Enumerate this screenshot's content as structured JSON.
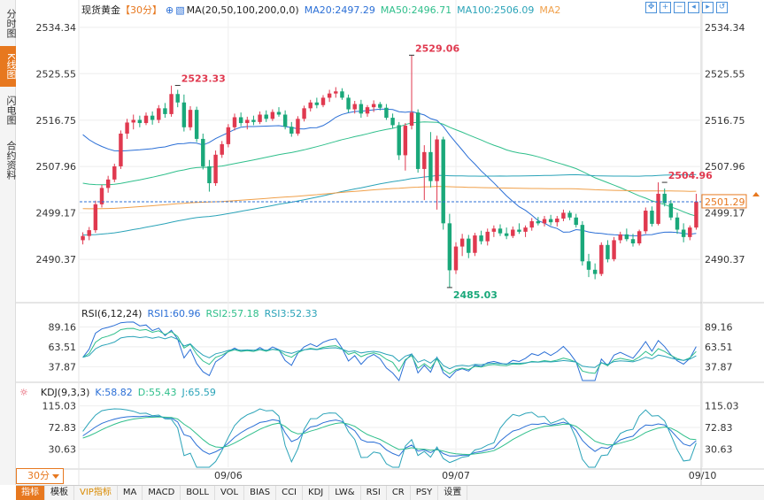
{
  "sidebar": {
    "tabs": [
      {
        "label": "分时图",
        "active": false
      },
      {
        "label": "K线图",
        "active": true
      },
      {
        "label": "闪电图",
        "active": false
      },
      {
        "label": "合约资料",
        "active": false
      }
    ]
  },
  "main_legend": {
    "name": "现货黄金",
    "period": "【30分】",
    "ma_label": "MA(20,50,100,200,0,0)",
    "ma20": "MA20:2497.29",
    "ma50": "MA50:2496.71",
    "ma100": "MA100:2506.09",
    "ma200": "MA2"
  },
  "rsi_legend": {
    "name": "RSI(6,12,24)",
    "r1": "RSI1:60.96",
    "r2": "RSI2:57.18",
    "r3": "RSI3:52.33"
  },
  "kdj_legend": {
    "name": "KDJ(9,3,3)",
    "k": "K:58.82",
    "d": "D:55.43",
    "j": "J:65.59"
  },
  "tools": [
    "zoom-fit-icon",
    "zoom-in-icon",
    "zoom-out-icon",
    "move-left-icon",
    "move-right-icon",
    "reset-icon"
  ],
  "period_selector": "30分",
  "bottom_bar": [
    "指标",
    "模板",
    "VIP指标",
    "MA",
    "MACD",
    "BOLL",
    "VOL",
    "BIAS",
    "CCI",
    "KDJ",
    "LW&",
    "RSI",
    "CR",
    "PSY",
    "设置"
  ],
  "colors": {
    "up": "#e0394f",
    "down": "#1aa87a",
    "ma20": "#2b6fd6",
    "ma50": "#2fbf8b",
    "ma100": "#2aa3b8",
    "ma200": "#f0a04a",
    "accent": "#e7781f"
  },
  "chart_data": [
    {
      "type": "candlestick",
      "title": "现货黄金",
      "y_ticks": [
        2534.34,
        2525.55,
        2516.75,
        2507.96,
        2499.17,
        2490.37
      ],
      "ylim": [
        2482.5,
        2536.5
      ],
      "x_ticks": [
        {
          "label": "09/06",
          "index": 23
        },
        {
          "label": "09/07",
          "index": 59
        },
        {
          "label": "09/10",
          "index": 98
        }
      ],
      "annotations": [
        {
          "label": "2523.33",
          "index": 15,
          "value": 2523.33,
          "kind": "high"
        },
        {
          "label": "2529.06",
          "index": 52,
          "value": 2529.06,
          "kind": "high"
        },
        {
          "label": "2485.03",
          "index": 58,
          "value": 2485.03,
          "kind": "low"
        },
        {
          "label": "2504.96",
          "index": 92,
          "value": 2504.96,
          "kind": "high"
        }
      ],
      "current_price": 2501.29,
      "ohlc": [
        [
          2494.0,
          2495.5,
          2493.2,
          2494.8
        ],
        [
          2494.8,
          2496.5,
          2494.0,
          2495.9
        ],
        [
          2495.9,
          2501.5,
          2495.4,
          2500.8
        ],
        [
          2500.8,
          2504.5,
          2500.2,
          2503.9
        ],
        [
          2503.9,
          2506.2,
          2503.0,
          2505.5
        ],
        [
          2505.5,
          2508.5,
          2505.0,
          2508.0
        ],
        [
          2508.0,
          2514.8,
          2507.5,
          2514.2
        ],
        [
          2514.2,
          2517.0,
          2513.2,
          2516.3
        ],
        [
          2516.3,
          2517.8,
          2515.0,
          2516.8
        ],
        [
          2516.8,
          2517.6,
          2515.4,
          2516.2
        ],
        [
          2516.2,
          2518.2,
          2515.8,
          2517.6
        ],
        [
          2517.6,
          2518.4,
          2515.9,
          2516.8
        ],
        [
          2516.8,
          2519.6,
          2516.2,
          2519.0
        ],
        [
          2519.0,
          2520.0,
          2517.2,
          2517.9
        ],
        [
          2517.9,
          2523.3,
          2517.4,
          2521.7
        ],
        [
          2521.7,
          2522.5,
          2519.2,
          2520.1
        ],
        [
          2520.1,
          2521.6,
          2514.6,
          2515.4
        ],
        [
          2515.4,
          2519.4,
          2514.8,
          2518.7
        ],
        [
          2518.7,
          2519.3,
          2512.6,
          2513.2
        ],
        [
          2513.2,
          2514.2,
          2507.4,
          2508.0
        ],
        [
          2508.0,
          2509.2,
          2503.2,
          2504.8
        ],
        [
          2504.8,
          2511.0,
          2504.3,
          2510.2
        ],
        [
          2510.2,
          2512.8,
          2509.6,
          2512.2
        ],
        [
          2512.2,
          2516.0,
          2511.6,
          2515.4
        ],
        [
          2515.4,
          2518.0,
          2514.8,
          2517.3
        ],
        [
          2517.3,
          2518.2,
          2515.6,
          2516.2
        ],
        [
          2516.2,
          2517.4,
          2515.0,
          2516.8
        ],
        [
          2516.8,
          2517.6,
          2515.8,
          2516.4
        ],
        [
          2516.4,
          2518.4,
          2516.0,
          2517.8
        ],
        [
          2517.8,
          2518.6,
          2516.4,
          2517.0
        ],
        [
          2517.0,
          2518.8,
          2516.6,
          2518.3
        ],
        [
          2518.3,
          2519.2,
          2517.4,
          2517.8
        ],
        [
          2517.8,
          2518.6,
          2515.0,
          2515.5
        ],
        [
          2515.5,
          2516.4,
          2513.6,
          2514.2
        ],
        [
          2514.2,
          2517.5,
          2513.8,
          2517.0
        ],
        [
          2517.0,
          2519.5,
          2516.5,
          2519.0
        ],
        [
          2519.0,
          2520.6,
          2518.4,
          2520.1
        ],
        [
          2520.1,
          2521.0,
          2519.0,
          2519.6
        ],
        [
          2519.6,
          2521.5,
          2519.2,
          2521.0
        ],
        [
          2521.0,
          2522.5,
          2520.2,
          2521.8
        ],
        [
          2521.8,
          2523.0,
          2521.0,
          2522.2
        ],
        [
          2522.2,
          2522.8,
          2520.6,
          2521.0
        ],
        [
          2521.0,
          2521.6,
          2518.2,
          2518.8
        ],
        [
          2518.8,
          2520.4,
          2518.0,
          2519.8
        ],
        [
          2519.8,
          2520.6,
          2517.2,
          2518.0
        ],
        [
          2518.0,
          2519.6,
          2517.4,
          2519.2
        ],
        [
          2519.2,
          2520.5,
          2518.3,
          2519.8
        ],
        [
          2519.8,
          2520.2,
          2518.6,
          2519.1
        ],
        [
          2519.1,
          2519.8,
          2516.8,
          2517.2
        ],
        [
          2517.2,
          2518.0,
          2515.2,
          2515.8
        ],
        [
          2515.8,
          2516.4,
          2509.2,
          2510.1
        ],
        [
          2510.1,
          2516.2,
          2507.2,
          2515.7
        ],
        [
          2515.7,
          2529.06,
          2515.0,
          2518.2
        ],
        [
          2518.2,
          2518.8,
          2506.8,
          2507.5
        ],
        [
          2507.5,
          2512.0,
          2501.6,
          2510.7
        ],
        [
          2510.7,
          2514.5,
          2504.0,
          2505.2
        ],
        [
          2505.2,
          2513.8,
          2499.8,
          2513.1
        ],
        [
          2513.1,
          2513.6,
          2496.0,
          2497.2
        ],
        [
          2497.2,
          2499.0,
          2485.03,
          2488.3
        ],
        [
          2488.3,
          2493.6,
          2487.6,
          2492.8
        ],
        [
          2492.8,
          2495.2,
          2491.0,
          2494.3
        ],
        [
          2494.3,
          2495.0,
          2490.6,
          2491.6
        ],
        [
          2491.6,
          2495.4,
          2491.0,
          2494.9
        ],
        [
          2494.9,
          2495.8,
          2493.2,
          2493.8
        ],
        [
          2493.8,
          2496.2,
          2493.0,
          2495.6
        ],
        [
          2495.6,
          2496.8,
          2494.6,
          2496.2
        ],
        [
          2496.2,
          2497.0,
          2494.8,
          2495.3
        ],
        [
          2495.3,
          2496.4,
          2494.2,
          2494.8
        ],
        [
          2494.8,
          2496.6,
          2494.4,
          2496.0
        ],
        [
          2496.0,
          2497.2,
          2495.2,
          2495.6
        ],
        [
          2495.6,
          2496.8,
          2494.6,
          2496.4
        ],
        [
          2496.4,
          2498.2,
          2495.8,
          2497.6
        ],
        [
          2497.6,
          2498.4,
          2496.8,
          2497.2
        ],
        [
          2497.2,
          2498.6,
          2496.6,
          2498.0
        ],
        [
          2498.0,
          2498.8,
          2496.8,
          2497.4
        ],
        [
          2497.4,
          2498.6,
          2496.6,
          2498.1
        ],
        [
          2498.1,
          2499.8,
          2497.6,
          2499.2
        ],
        [
          2499.2,
          2499.6,
          2497.8,
          2498.3
        ],
        [
          2498.3,
          2499.0,
          2496.4,
          2496.9
        ],
        [
          2496.9,
          2497.6,
          2489.2,
          2490.0
        ],
        [
          2490.0,
          2491.4,
          2487.0,
          2488.4
        ],
        [
          2488.4,
          2489.6,
          2486.6,
          2487.6
        ],
        [
          2487.6,
          2493.6,
          2487.2,
          2493.1
        ],
        [
          2493.1,
          2494.0,
          2489.8,
          2490.4
        ],
        [
          2490.4,
          2494.6,
          2490.0,
          2494.0
        ],
        [
          2494.0,
          2495.6,
          2493.4,
          2495.1
        ],
        [
          2495.1,
          2496.2,
          2493.8,
          2494.2
        ],
        [
          2494.2,
          2495.2,
          2492.8,
          2493.4
        ],
        [
          2493.4,
          2496.0,
          2493.0,
          2495.7
        ],
        [
          2495.7,
          2500.2,
          2495.2,
          2499.6
        ],
        [
          2499.6,
          2500.4,
          2496.6,
          2497.1
        ],
        [
          2497.1,
          2504.96,
          2496.8,
          2502.8
        ],
        [
          2502.8,
          2503.8,
          2500.4,
          2501.0
        ],
        [
          2501.0,
          2501.6,
          2497.8,
          2498.3
        ],
        [
          2498.3,
          2499.2,
          2495.2,
          2496.0
        ],
        [
          2496.0,
          2497.2,
          2493.6,
          2494.6
        ],
        [
          2494.6,
          2496.8,
          2494.0,
          2496.4
        ],
        [
          2496.4,
          2502.8,
          2496.0,
          2501.29
        ]
      ]
    },
    {
      "type": "line",
      "title": "RSI(6,12,24)",
      "y_ticks": [
        89.16,
        63.51,
        37.87
      ],
      "series": [
        {
          "name": "RSI1"
        },
        {
          "name": "RSI2"
        },
        {
          "name": "RSI3"
        }
      ]
    },
    {
      "type": "line",
      "title": "KDJ(9,3,3)",
      "y_ticks": [
        115.03,
        72.83,
        30.63
      ],
      "series": [
        {
          "name": "K"
        },
        {
          "name": "D"
        },
        {
          "name": "J"
        }
      ]
    }
  ]
}
